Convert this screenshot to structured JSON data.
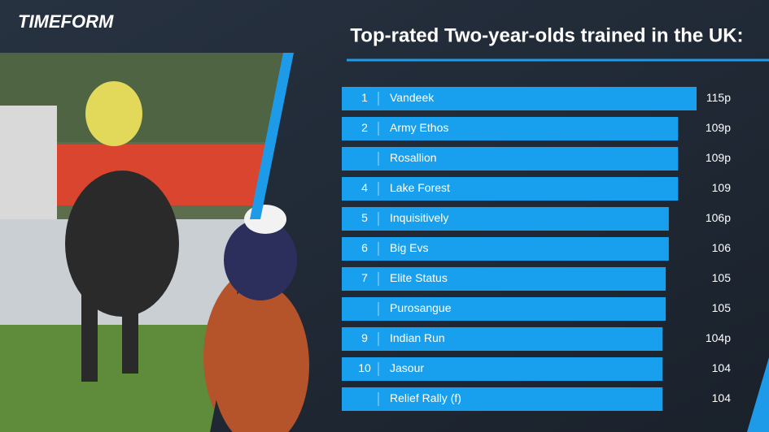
{
  "logo": "TIMEFORM",
  "chart_data": {
    "type": "bar",
    "orientation": "horizontal",
    "title": "Top-rated Two-year-olds trained in the UK:",
    "ranks": [
      "1",
      "2",
      null,
      "4",
      "5",
      "6",
      "7",
      null,
      "9",
      "10",
      null
    ],
    "categories": [
      "Vandeek",
      "Army Ethos",
      "Rosallion",
      "Lake Forest",
      "Inquisitively",
      "Big Evs",
      "Elite Status",
      "Purosangue",
      "Indian Run",
      "Jasour",
      "Relief Rally (f)"
    ],
    "values": [
      115,
      109,
      109,
      109,
      106,
      106,
      105,
      105,
      104,
      104,
      104
    ],
    "value_labels": [
      "115p",
      "109p",
      "109p",
      "109",
      "106p",
      "106",
      "105",
      "105",
      "104p",
      "104",
      "104"
    ],
    "color": "#18a0ee"
  }
}
